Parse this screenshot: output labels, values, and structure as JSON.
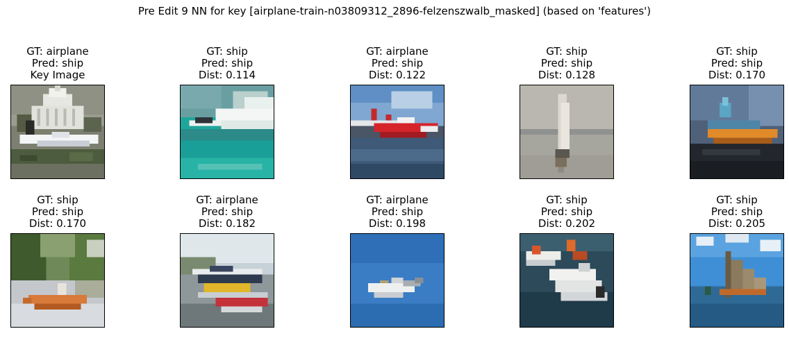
{
  "figure": {
    "title": "Pre Edit 9 NN for key [airplane-train-n03809312_2896-felzenszwalb_masked] (based on 'features')"
  },
  "panels": [
    {
      "gt": "GT: airplane",
      "pred": "Pred: ship",
      "extra": "Key Image",
      "scene": "capitol-plane"
    },
    {
      "gt": "GT: ship",
      "pred": "Pred: ship",
      "extra": "Dist: 0.114",
      "scene": "speedboat-teal"
    },
    {
      "gt": "GT: airplane",
      "pred": "Pred: ship",
      "extra": "Dist: 0.122",
      "scene": "red-seaplane"
    },
    {
      "gt": "GT: ship",
      "pred": "Pred: ship",
      "extra": "Dist: 0.128",
      "scene": "sailboat-grey"
    },
    {
      "gt": "GT: ship",
      "pred": "Pred: ship",
      "extra": "Dist: 0.170",
      "scene": "orange-boat-dark"
    },
    {
      "gt": "GT: ship",
      "pred": "Pred: ship",
      "extra": "Dist: 0.170",
      "scene": "canoe-forest"
    },
    {
      "gt": "GT: airplane",
      "pred": "Pred: ship",
      "extra": "Dist: 0.182",
      "scene": "yellow-seaplane"
    },
    {
      "gt": "GT: airplane",
      "pred": "Pred: ship",
      "extra": "Dist: 0.198",
      "scene": "plane-blue-sky"
    },
    {
      "gt": "GT: ship",
      "pred": "Pred: ship",
      "extra": "Dist: 0.202",
      "scene": "white-boats"
    },
    {
      "gt": "GT: ship",
      "pred": "Pred: ship",
      "extra": "Dist: 0.205",
      "scene": "sail-blue-sea"
    }
  ]
}
